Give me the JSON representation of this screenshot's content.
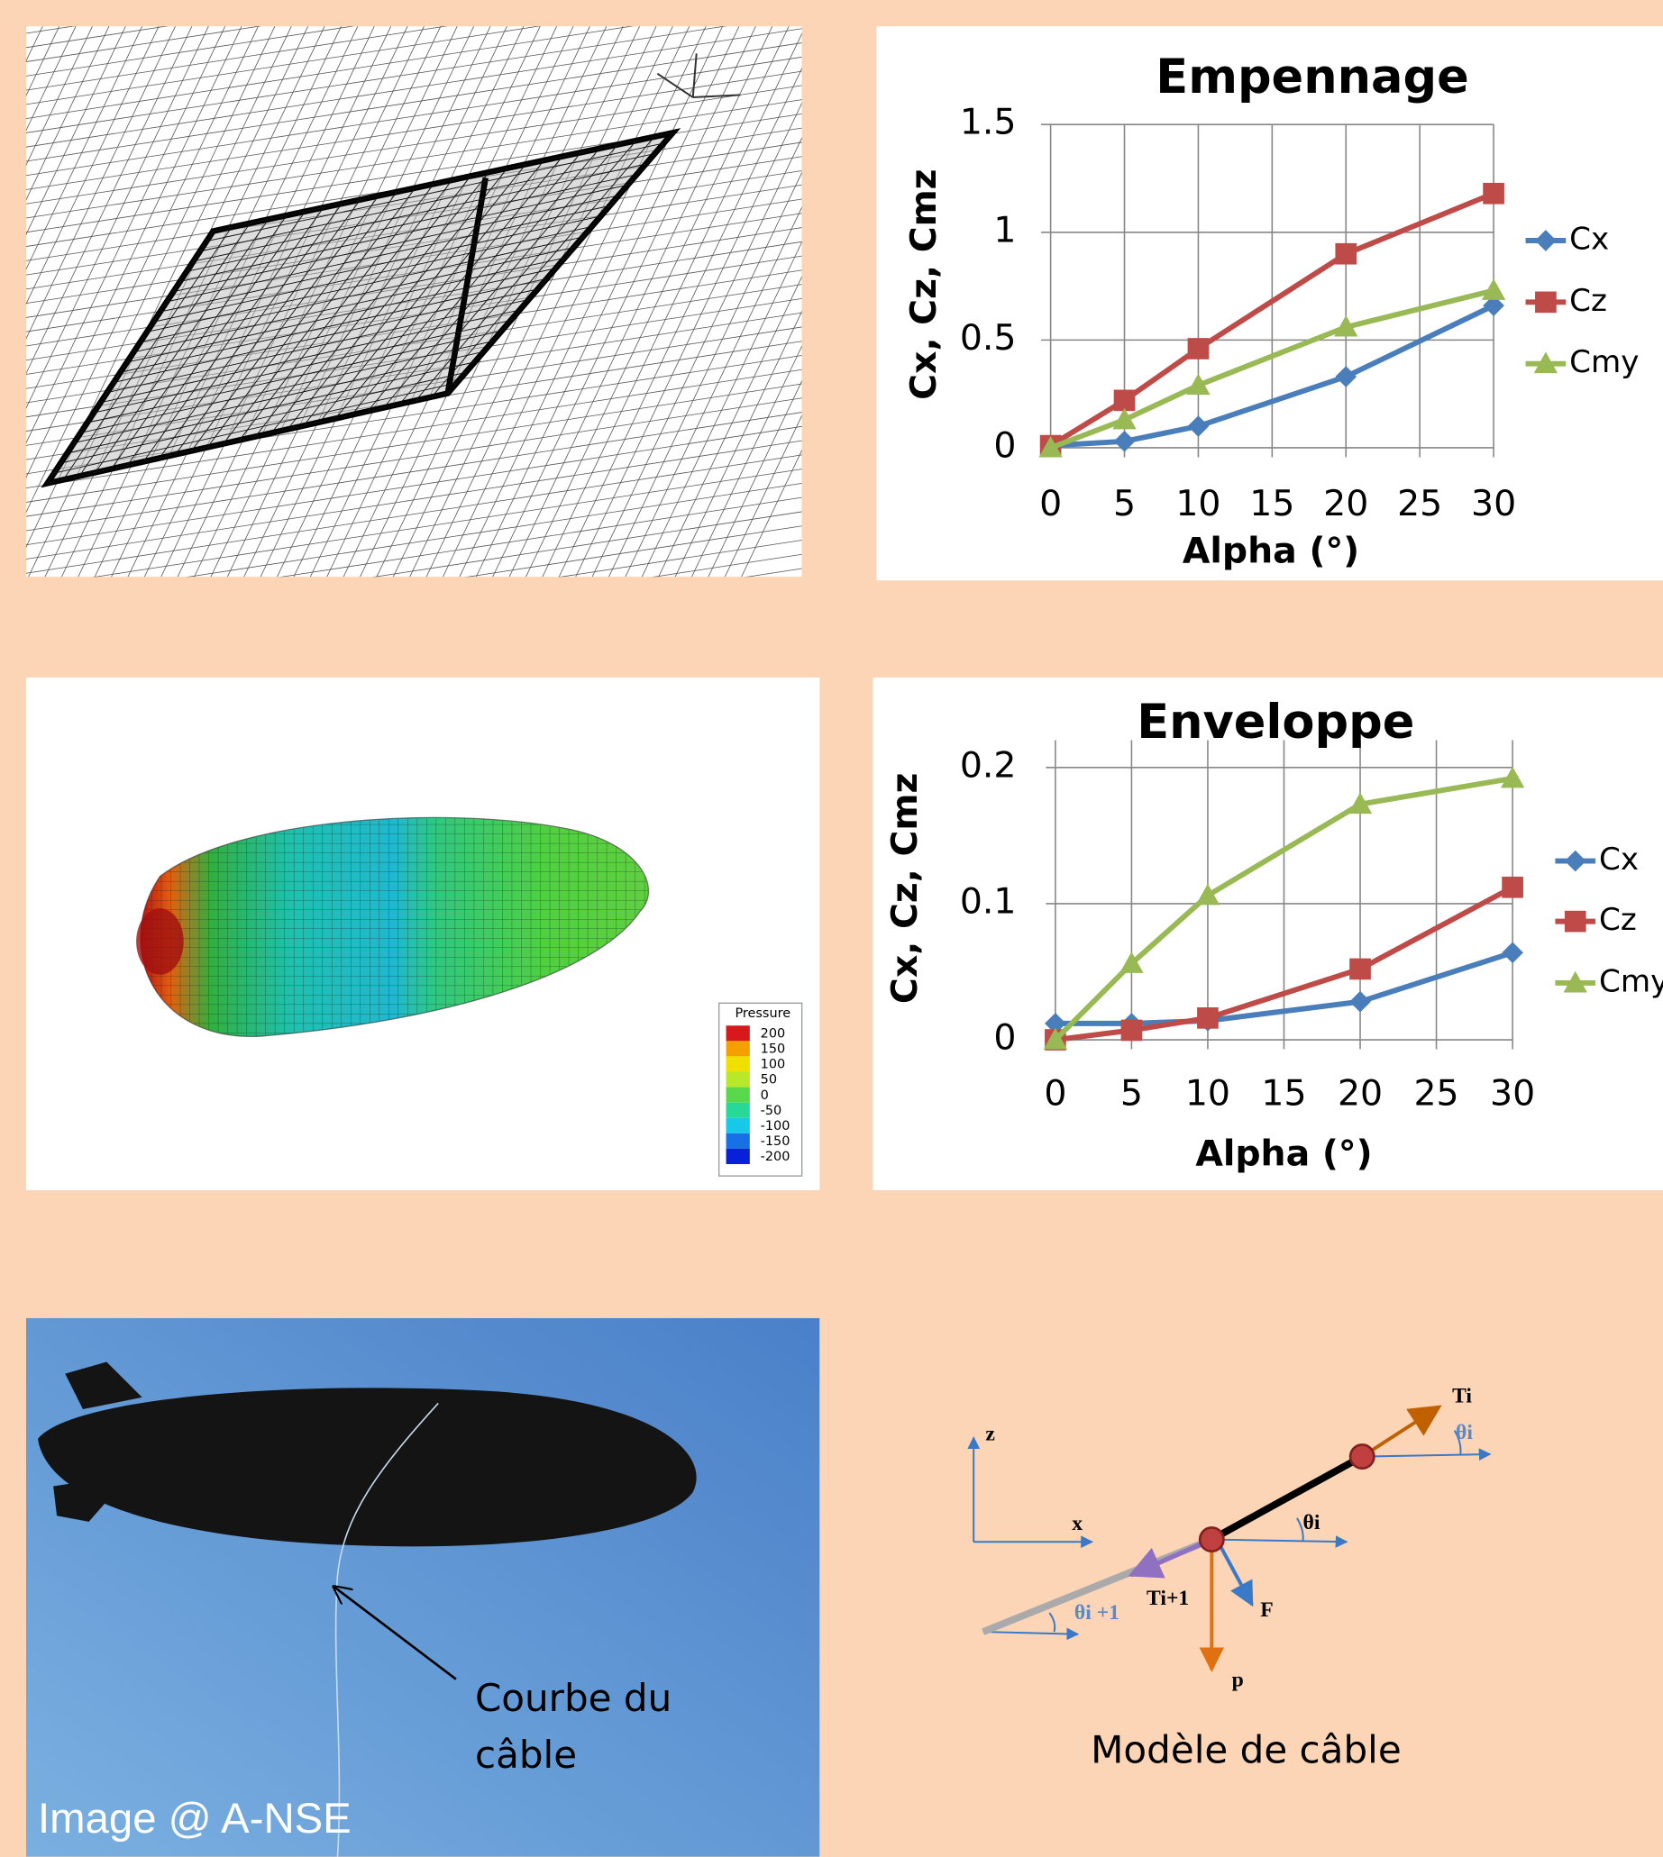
{
  "chart_data": [
    {
      "type": "line",
      "title": "Empennage",
      "x_label": "Alpha (°)",
      "y_label": "Cx, Cz, Cmz",
      "x": [
        0,
        5,
        10,
        20,
        30
      ],
      "series": [
        {
          "name": "Cx",
          "color": "#4a7ebb",
          "marker": "diamond",
          "values": [
            0.01,
            0.03,
            0.1,
            0.33,
            0.66
          ]
        },
        {
          "name": "Cz",
          "color": "#be4b48",
          "marker": "square",
          "values": [
            0.01,
            0.22,
            0.46,
            0.9,
            1.18
          ]
        },
        {
          "name": "Cmy",
          "color": "#98b954",
          "marker": "triangle",
          "values": [
            0,
            0.13,
            0.29,
            0.56,
            0.73
          ]
        }
      ],
      "xlim": [
        0,
        30
      ],
      "ylim": [
        0,
        1.5
      ],
      "xticks": [
        0,
        5,
        10,
        15,
        20,
        25,
        30
      ],
      "yticks": [
        0,
        0.5,
        1,
        1.5
      ],
      "grid": true,
      "legend": "right"
    },
    {
      "type": "line",
      "title": "Enveloppe",
      "x_label": "Alpha (°)",
      "y_label": "Cx, Cz, Cmz",
      "x": [
        0,
        5,
        10,
        20,
        30
      ],
      "series": [
        {
          "name": "Cx",
          "color": "#4a7ebb",
          "marker": "diamond",
          "values": [
            0.012,
            0.012,
            0.014,
            0.028,
            0.064
          ]
        },
        {
          "name": "Cz",
          "color": "#be4b48",
          "marker": "square",
          "values": [
            0,
            0.007,
            0.016,
            0.052,
            0.112
          ]
        },
        {
          "name": "Cmy",
          "color": "#98b954",
          "marker": "triangle",
          "values": [
            0,
            0.056,
            0.106,
            0.173,
            0.192
          ]
        }
      ],
      "xlim": [
        0,
        30
      ],
      "ylim": [
        0,
        0.22
      ],
      "xticks": [
        0,
        5,
        10,
        15,
        20,
        25,
        30
      ],
      "yticks": [
        0,
        0.1,
        0.2
      ],
      "grid": true,
      "legend": "right"
    }
  ],
  "pressure_legend": {
    "title": "Pressure",
    "levels": [
      200,
      150,
      100,
      50,
      0,
      -50,
      -100,
      -150,
      -200
    ],
    "colors": [
      "#d7191c",
      "#f5a000",
      "#f0e000",
      "#b8e82a",
      "#58d84a",
      "#28d898",
      "#18c8e8",
      "#1870e8",
      "#0820d8"
    ]
  },
  "photo": {
    "annotation": [
      "Courbe du",
      "câble"
    ],
    "credit": "Image @ A-NSE"
  },
  "diagram": {
    "caption": "Modèle de câble",
    "labels": {
      "z": "z",
      "x": "x",
      "ti": "Ti",
      "theta_i_top": "θi",
      "theta_i": "θi",
      "ti1": "Ti+1",
      "theta_i1": "θi +1",
      "f": "F",
      "p": "p"
    }
  }
}
